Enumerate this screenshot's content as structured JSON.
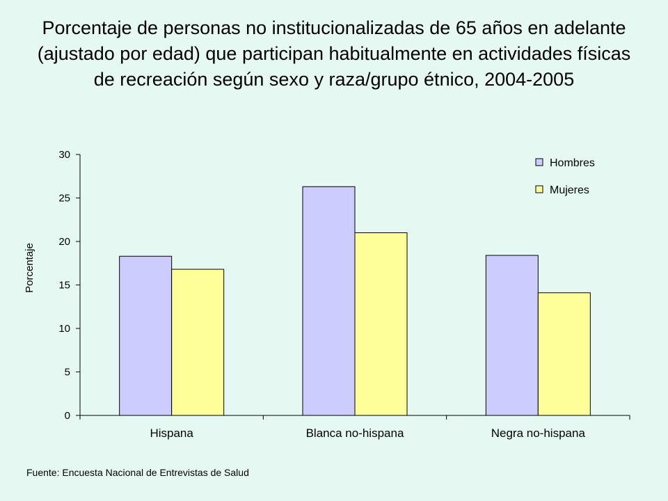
{
  "title": "Porcentaje de personas no institucionalizadas de 65 años en adelante (ajustado por edad) que participan habitualmente en actividades físicas de recreación según sexo y raza/grupo étnico, 2004-2005",
  "source": "Fuente: Encuesta Nacional de Entrevistas de Salud",
  "colors": {
    "background": "#e6f8f2",
    "hombres": "#ccccff",
    "mujeres": "#ffff99",
    "outline": "#000000"
  },
  "chart_data": {
    "type": "bar",
    "title": "Porcentaje de personas no institucionalizadas de 65 años en adelante (ajustado por edad) que participan habitualmente en actividades físicas de recreación según sexo y raza/grupo étnico, 2004-2005",
    "xlabel": "",
    "ylabel": "Porcentaje",
    "ylim": [
      0,
      30
    ],
    "yticks": [
      0,
      5,
      10,
      15,
      20,
      25,
      30
    ],
    "grid": false,
    "legend_position": "top-right",
    "categories": [
      "Hispana",
      "Blanca no-hispana",
      "Negra no-hispana"
    ],
    "series": [
      {
        "name": "Hombres",
        "values": [
          18.3,
          26.3,
          18.4
        ]
      },
      {
        "name": "Mujeres",
        "values": [
          16.8,
          21.0,
          14.1
        ]
      }
    ]
  }
}
